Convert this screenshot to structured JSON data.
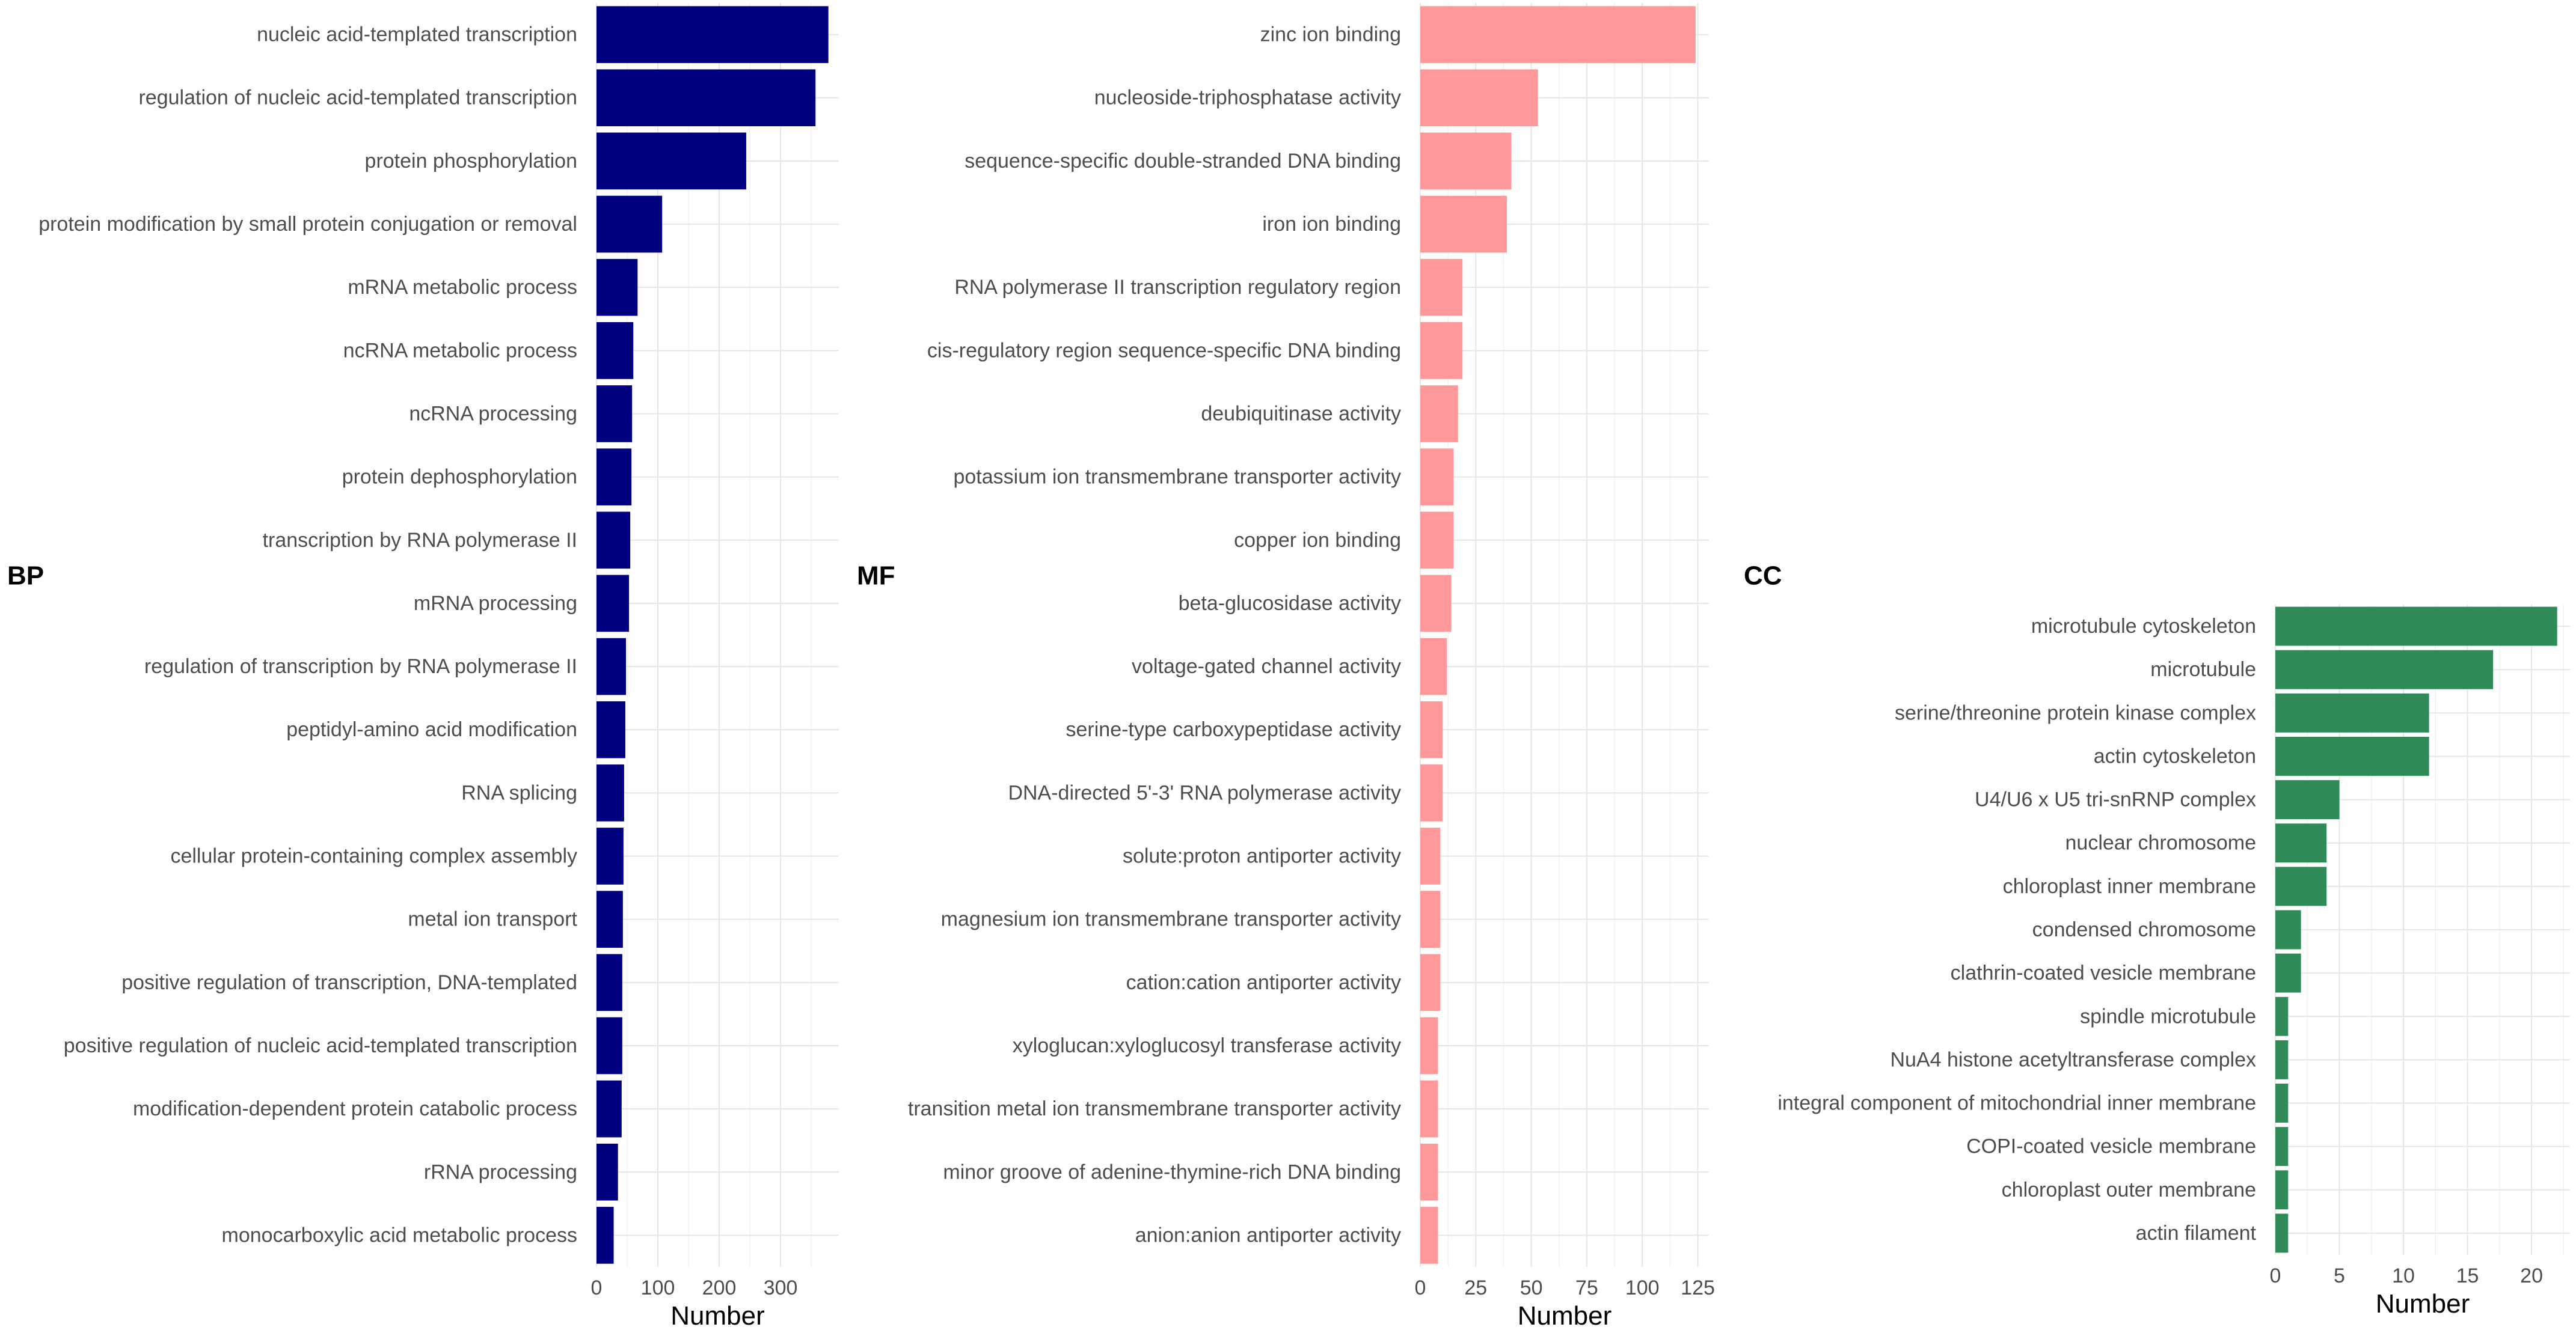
{
  "chart_data": [
    {
      "type": "bar",
      "orientation": "horizontal",
      "panel_label": "BP",
      "xlabel": "Number",
      "ylabel": "",
      "xlim": [
        0,
        395
      ],
      "xticks": [
        0,
        100,
        200,
        300
      ],
      "color": "#000080",
      "grid": true,
      "categories": [
        "nucleic acid-templated transcription",
        "regulation of nucleic acid-templated transcription",
        "protein phosphorylation",
        "protein modification by small protein conjugation or removal",
        "mRNA metabolic process",
        "ncRNA metabolic process",
        "ncRNA processing",
        "protein dephosphorylation",
        "transcription by RNA polymerase II",
        "mRNA processing",
        "regulation of transcription by RNA polymerase II",
        "peptidyl-amino acid modification",
        "RNA splicing",
        "cellular protein-containing complex assembly",
        "metal ion transport",
        "positive regulation of transcription, DNA-templated",
        "positive regulation of nucleic acid-templated transcription",
        "modification-dependent protein catabolic process",
        "rRNA processing",
        "monocarboxylic acid metabolic process"
      ],
      "values": [
        378,
        357,
        244,
        107,
        67,
        60,
        58,
        57,
        55,
        53,
        48,
        47,
        45,
        44,
        43,
        42,
        42,
        41,
        35,
        28
      ]
    },
    {
      "type": "bar",
      "orientation": "horizontal",
      "panel_label": "MF",
      "xlabel": "Number",
      "ylabel": "",
      "xlim": [
        0,
        130
      ],
      "xticks": [
        0,
        25,
        50,
        75,
        100,
        125
      ],
      "color": "#FF9999",
      "grid": true,
      "categories": [
        "zinc ion binding",
        "nucleoside-triphosphatase activity",
        "sequence-specific double-stranded DNA binding",
        "iron ion binding",
        "RNA polymerase II transcription regulatory region",
        "cis-regulatory region sequence-specific DNA binding",
        "deubiquitinase activity",
        "potassium ion transmembrane transporter activity",
        "copper ion binding",
        "beta-glucosidase activity",
        "voltage-gated channel activity",
        "serine-type carboxypeptidase activity",
        "DNA-directed 5'-3' RNA polymerase activity",
        "solute:proton antiporter activity",
        "magnesium ion transmembrane transporter activity",
        "cation:cation antiporter activity",
        "xyloglucan:xyloglucosyl transferase activity",
        "transition metal ion transmembrane transporter activity",
        "minor groove of adenine-thymine-rich DNA binding",
        "anion:anion antiporter activity"
      ],
      "values": [
        124,
        53,
        41,
        39,
        19,
        19,
        17,
        15,
        15,
        14,
        12,
        10,
        10,
        9,
        9,
        9,
        8,
        8,
        8,
        8
      ]
    },
    {
      "type": "bar",
      "orientation": "horizontal",
      "panel_label": "CC",
      "xlabel": "Number",
      "ylabel": "",
      "xlim": [
        0,
        23
      ],
      "xticks": [
        0,
        5,
        10,
        15,
        20
      ],
      "color": "#2E8B57",
      "grid": true,
      "categories": [
        "microtubule cytoskeleton",
        "microtubule",
        "serine/threonine protein kinase complex",
        "actin cytoskeleton",
        "U4/U6 x U5 tri-snRNP complex",
        "nuclear chromosome",
        "chloroplast inner membrane",
        "condensed chromosome",
        "clathrin-coated vesicle membrane",
        "spindle microtubule",
        "NuA4 histone acetyltransferase complex",
        "integral component of mitochondrial inner membrane",
        "COPI-coated vesicle membrane",
        "chloroplast outer membrane",
        "actin filament"
      ],
      "values": [
        22,
        17,
        12,
        12,
        5,
        4,
        4,
        2,
        2,
        1,
        1,
        1,
        1,
        1,
        1
      ]
    }
  ]
}
